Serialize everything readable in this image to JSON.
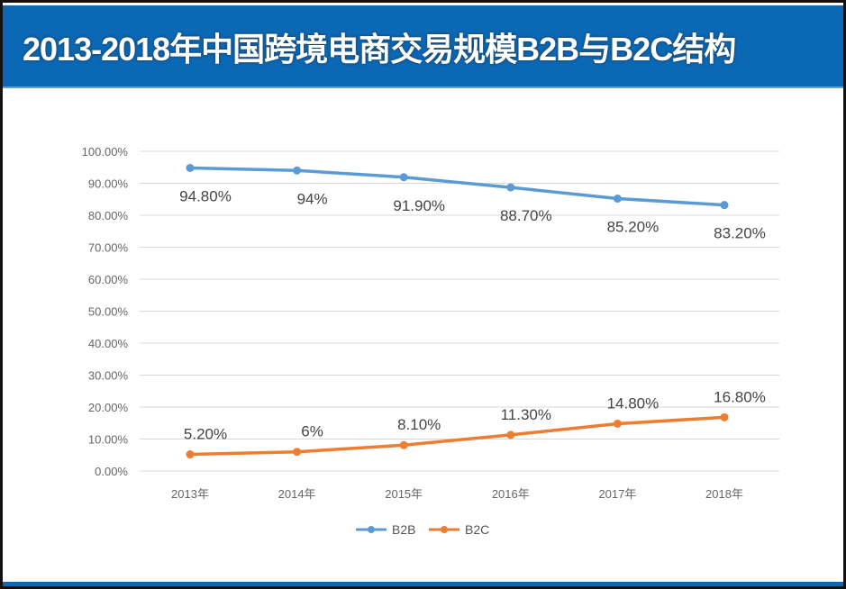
{
  "chart_data": {
    "type": "line",
    "title": "2013-2018年中国跨境电商交易规模B2B与B2C结构",
    "categories": [
      "2013年",
      "2014年",
      "2015年",
      "2016年",
      "2017年",
      "2018年"
    ],
    "series": [
      {
        "name": "B2B",
        "values": [
          94.8,
          94,
          91.9,
          88.7,
          85.2,
          83.2
        ],
        "labels": [
          "94.80%",
          "94%",
          "91.90%",
          "88.70%",
          "85.20%",
          "83.20%"
        ],
        "color": "#5b9bd5"
      },
      {
        "name": "B2C",
        "values": [
          5.2,
          6,
          8.1,
          11.3,
          14.8,
          16.8
        ],
        "labels": [
          "5.20%",
          "6%",
          "8.10%",
          "11.30%",
          "14.80%",
          "16.80%"
        ],
        "color": "#ed7d31"
      }
    ],
    "ylim": [
      0,
      100
    ],
    "yticks": [
      "0.00%",
      "10.00%",
      "20.00%",
      "30.00%",
      "40.00%",
      "50.00%",
      "60.00%",
      "70.00%",
      "80.00%",
      "90.00%",
      "100.00%"
    ],
    "grid": true,
    "legend": "bottom",
    "colors": {
      "banner": "#0b68b5",
      "grid": "#d9d9d9"
    }
  }
}
